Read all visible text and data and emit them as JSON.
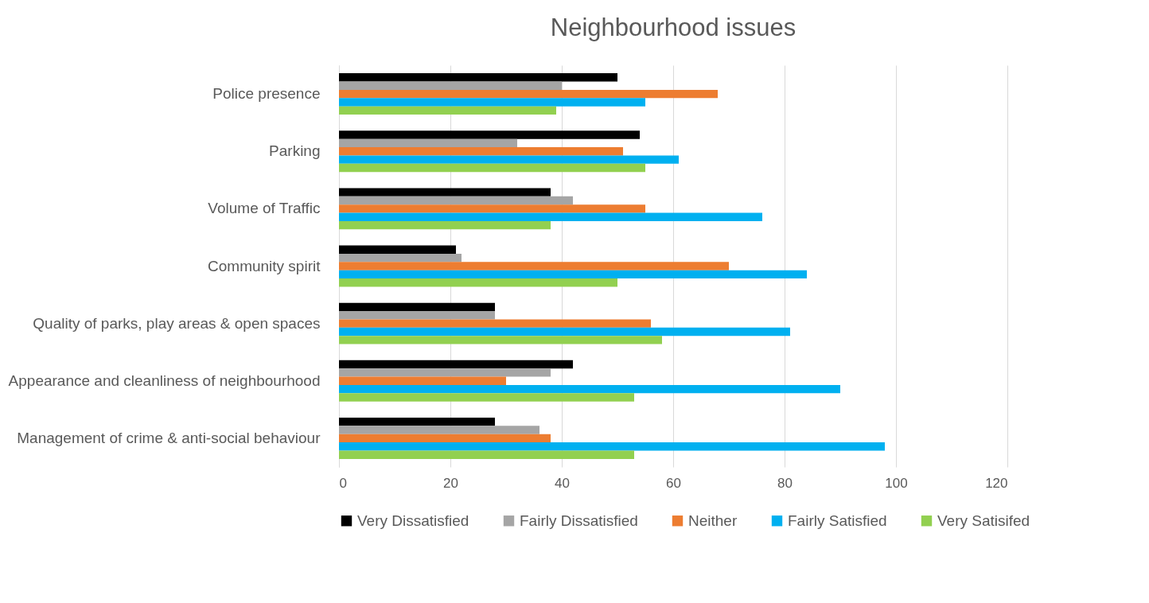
{
  "chart_data": {
    "type": "bar",
    "orientation": "horizontal",
    "title": "Neighbourhood issues",
    "categories": [
      "Police presence",
      "Parking",
      "Volume of Traffic",
      "Community spirit",
      "Quality of parks, play areas & open spaces",
      "Appearance and cleanliness of neighbourhood",
      "Management of crime & anti-social behaviour"
    ],
    "series": [
      {
        "name": "Very Dissatisfied",
        "color": "#000000",
        "values": [
          50,
          54,
          38,
          21,
          28,
          42,
          28
        ]
      },
      {
        "name": "Fairly Dissatisfied",
        "color": "#a5a5a5",
        "values": [
          40,
          32,
          42,
          22,
          28,
          38,
          36
        ]
      },
      {
        "name": "Neither",
        "color": "#ed7d31",
        "values": [
          68,
          51,
          55,
          70,
          56,
          30,
          38
        ]
      },
      {
        "name": "Fairly Satisfied",
        "color": "#00b0f0",
        "values": [
          55,
          61,
          76,
          84,
          81,
          90,
          98
        ]
      },
      {
        "name": "Very Satisifed",
        "color": "#92d050",
        "values": [
          39,
          55,
          38,
          50,
          58,
          53,
          53
        ]
      }
    ],
    "xlim": [
      0,
      120
    ],
    "xticks": [
      0,
      20,
      40,
      60,
      80,
      100,
      120
    ],
    "grid": "x",
    "legend": "bottom"
  }
}
